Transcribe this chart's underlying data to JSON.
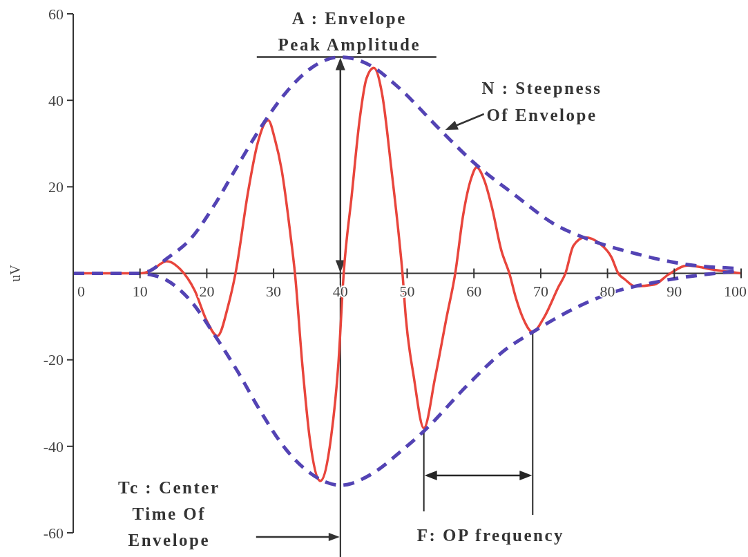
{
  "chart_data": {
    "type": "line",
    "ylabel": "uV",
    "xlim": [
      0,
      100
    ],
    "xticks": [
      0,
      10,
      20,
      30,
      40,
      50,
      60,
      70,
      80,
      90,
      100
    ],
    "ylim": [
      -60,
      60
    ],
    "yticks": [
      -60,
      -40,
      -20,
      20,
      40,
      60
    ],
    "series": [
      {
        "color": "#e8453c",
        "line_style": "solid",
        "x": [
          0,
          5,
          10,
          11.5,
          14,
          16,
          18.2,
          20,
          21.6,
          23.2,
          24.3,
          26.2,
          27.6,
          29.2,
          30.2,
          31.2,
          32.6,
          33.2,
          34.3,
          35.4,
          37,
          38.6,
          39.7,
          40.5,
          41.7,
          42.9,
          43.9,
          45,
          46.3,
          47.6,
          48.8,
          49.3,
          49.8,
          51,
          52.5,
          54.2,
          55.9,
          57.2,
          58.4,
          59.6,
          60.4,
          61.6,
          62.7,
          64.1,
          65.3,
          66.3,
          67.3,
          68.8,
          70.5,
          72.7,
          73.7,
          74.9,
          76.6,
          78.8,
          80.6,
          81.6,
          82.6,
          84.1,
          87,
          89.1,
          92,
          96,
          100
        ],
        "values": [
          0,
          0,
          0,
          0.5,
          2.8,
          1,
          -4,
          -11,
          -14.5,
          -7.5,
          0,
          19,
          30,
          35.4,
          31,
          24,
          8,
          0,
          -21,
          -38,
          -48,
          -38,
          -21,
          0,
          18,
          35.7,
          45,
          47.5,
          41,
          24.6,
          8,
          0,
          -10.2,
          -24,
          -35.8,
          -24,
          -10.2,
          0,
          13.6,
          22,
          24.5,
          21.3,
          15.2,
          5.3,
          0,
          -5.8,
          -10.2,
          -13.6,
          -10.2,
          -3,
          0,
          6.4,
          8.3,
          6.9,
          3.7,
          0,
          -1.4,
          -3,
          -2.6,
          -0.3,
          1.8,
          0.8,
          0
        ]
      },
      {
        "color": "#5343b4",
        "line_style": "dashed",
        "x": [
          0,
          5,
          10,
          11.5,
          14,
          17.6,
          21.1,
          24.7,
          28.2,
          31.8,
          35.4,
          40,
          44.9,
          48.4,
          55.5,
          59.9,
          66.3,
          72,
          76.9,
          84.1,
          91.2,
          100
        ],
        "values": [
          0,
          0,
          0,
          0.6,
          3.4,
          8,
          15.7,
          25.1,
          34,
          41.7,
          47.2,
          50,
          47.7,
          43.4,
          32.3,
          25.7,
          17.9,
          11.4,
          8,
          4.6,
          2.2,
          1.1
        ]
      },
      {
        "color": "#5343b4",
        "line_style": "dashed",
        "x": [
          0,
          5,
          10,
          11.5,
          14,
          17.6,
          21.1,
          24.7,
          28.2,
          31.8,
          35.4,
          40,
          45,
          49.1,
          52.5,
          59.2,
          64.5,
          69.1,
          75.2,
          80.6,
          87.7,
          100
        ],
        "values": [
          0,
          0,
          0,
          -0.3,
          -1.6,
          -6.4,
          -14.1,
          -22.9,
          -32.3,
          -40.6,
          -46.1,
          -49,
          -46.1,
          -41.1,
          -36.5,
          -25.6,
          -17.9,
          -13.3,
          -8,
          -4.5,
          -1.9,
          0.6
        ]
      }
    ],
    "ref_lines": [
      {
        "axis": "x",
        "value": 40,
        "color": "#262626"
      },
      {
        "axis": "x",
        "value": 52.5,
        "label": "F: OP frequency",
        "color": "#262626"
      },
      {
        "axis": "x",
        "value": 68.8,
        "color": "#262626"
      }
    ],
    "annotations": [
      {
        "text": "A : Envelope Peak Amplitude",
        "x": 40,
        "y": 50
      },
      {
        "text": "N : Steepness Of Envelope",
        "x": 55.5,
        "y": 33
      },
      "Tc : Center Time Of Envelope"
    ]
  }
}
